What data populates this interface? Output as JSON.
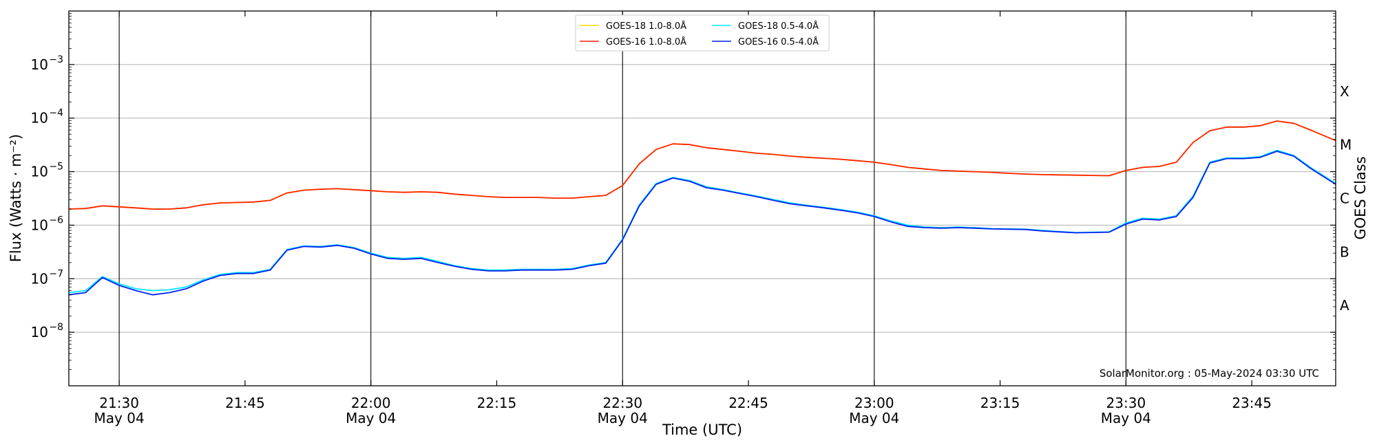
{
  "chart_data": {
    "type": "line",
    "title": "",
    "xlabel": "Time (UTC)",
    "ylabel": "Flux (Watts · m⁻²)",
    "right_ylabel": "GOES Class",
    "yscale": "log",
    "ylim": [
      1e-09,
      0.01
    ],
    "xlim": [
      "21:24",
      "23:55"
    ],
    "grid": "horizontal",
    "legend_position": "top-center",
    "x_ticks": [
      {
        "time": "21:30",
        "label": "21:30",
        "sublabel": "May 04",
        "vline": true
      },
      {
        "time": "21:45",
        "label": "21:45",
        "sublabel": "",
        "vline": false
      },
      {
        "time": "22:00",
        "label": "22:00",
        "sublabel": "May 04",
        "vline": true
      },
      {
        "time": "22:15",
        "label": "22:15",
        "sublabel": "",
        "vline": false
      },
      {
        "time": "22:30",
        "label": "22:30",
        "sublabel": "May 04",
        "vline": true
      },
      {
        "time": "22:45",
        "label": "22:45",
        "sublabel": "",
        "vline": false
      },
      {
        "time": "23:00",
        "label": "23:00",
        "sublabel": "May 04",
        "vline": true
      },
      {
        "time": "23:15",
        "label": "23:15",
        "sublabel": "",
        "vline": false
      },
      {
        "time": "23:30",
        "label": "23:30",
        "sublabel": "May 04",
        "vline": true
      },
      {
        "time": "23:45",
        "label": "23:45",
        "sublabel": "",
        "vline": false
      }
    ],
    "y_ticks": [
      {
        "value": 1e-08,
        "mantissa": "10",
        "exponent": "−8"
      },
      {
        "value": 1e-07,
        "mantissa": "10",
        "exponent": "−7"
      },
      {
        "value": 1e-06,
        "mantissa": "10",
        "exponent": "−6"
      },
      {
        "value": 1e-05,
        "mantissa": "10",
        "exponent": "−5"
      },
      {
        "value": 0.0001,
        "mantissa": "10",
        "exponent": "−4"
      },
      {
        "value": 0.001,
        "mantissa": "10",
        "exponent": "−3"
      }
    ],
    "goes_classes": [
      {
        "label": "X",
        "value": 0.000316
      },
      {
        "label": "M",
        "value": 3.16e-05
      },
      {
        "label": "C",
        "value": 3.16e-06
      },
      {
        "label": "B",
        "value": 3.16e-07
      },
      {
        "label": "A",
        "value": 3.16e-08
      }
    ],
    "series": [
      {
        "name": "GOES-18 1.0-8.0Å",
        "color": "#ffd700",
        "x": [
          "21:24",
          "21:26",
          "21:28",
          "21:30",
          "21:32",
          "21:34",
          "21:36",
          "21:38",
          "21:40",
          "21:42",
          "21:44",
          "21:46",
          "21:48",
          "21:50",
          "21:52",
          "21:54",
          "21:56",
          "21:58",
          "22:00",
          "22:02",
          "22:04",
          "22:06",
          "22:08",
          "22:10",
          "22:12",
          "22:14",
          "22:16",
          "22:18",
          "22:20",
          "22:22",
          "22:24",
          "22:26",
          "22:28",
          "22:30",
          "22:32",
          "22:34",
          "22:36",
          "22:38",
          "22:40",
          "22:42",
          "22:44",
          "22:46",
          "22:48",
          "22:50",
          "22:52",
          "22:54",
          "22:56",
          "22:58",
          "23:00",
          "23:02",
          "23:04",
          "23:06",
          "23:08",
          "23:10",
          "23:12",
          "23:14",
          "23:16",
          "23:18",
          "23:20",
          "23:22",
          "23:24",
          "23:26",
          "23:28",
          "23:30",
          "23:32",
          "23:34",
          "23:36",
          "23:38",
          "23:40",
          "23:42",
          "23:44",
          "23:46",
          "23:48",
          "23:50",
          "23:52",
          "23:55"
        ],
        "y": [
          2e-06,
          2.05e-06,
          2.3e-06,
          2.2e-06,
          2.1e-06,
          2e-06,
          2e-06,
          2.1e-06,
          2.4e-06,
          2.6e-06,
          2.65e-06,
          2.7e-06,
          2.9e-06,
          4e-06,
          4.5e-06,
          4.7e-06,
          4.8e-06,
          4.6e-06,
          4.4e-06,
          4.2e-06,
          4.1e-06,
          4.2e-06,
          4.1e-06,
          3.8e-06,
          3.6e-06,
          3.4e-06,
          3.3e-06,
          3.3e-06,
          3.3e-06,
          3.2e-06,
          3.2e-06,
          3.4e-06,
          3.6e-06,
          5.5e-06,
          1.4e-05,
          2.6e-05,
          3.3e-05,
          3.2e-05,
          2.8e-05,
          2.6e-05,
          2.4e-05,
          2.2e-05,
          2.1e-05,
          1.95e-05,
          1.85e-05,
          1.78e-05,
          1.7e-05,
          1.6e-05,
          1.5e-05,
          1.35e-05,
          1.2e-05,
          1.12e-05,
          1.05e-05,
          1.02e-05,
          1e-05,
          9.7e-06,
          9.3e-06,
          9e-06,
          8.8e-06,
          8.7e-06,
          8.6e-06,
          8.5e-06,
          8.4e-06,
          1.05e-05,
          1.2e-05,
          1.25e-05,
          1.5e-05,
          3.5e-05,
          5.8e-05,
          6.8e-05,
          6.8e-05,
          7.2e-05,
          8.8e-05,
          8e-05,
          6e-05,
          3.8e-05
        ]
      },
      {
        "name": "GOES-16 1.0-8.0Å",
        "color": "#ff2200",
        "x": [
          "21:24",
          "21:26",
          "21:28",
          "21:30",
          "21:32",
          "21:34",
          "21:36",
          "21:38",
          "21:40",
          "21:42",
          "21:44",
          "21:46",
          "21:48",
          "21:50",
          "21:52",
          "21:54",
          "21:56",
          "21:58",
          "22:00",
          "22:02",
          "22:04",
          "22:06",
          "22:08",
          "22:10",
          "22:12",
          "22:14",
          "22:16",
          "22:18",
          "22:20",
          "22:22",
          "22:24",
          "22:26",
          "22:28",
          "22:30",
          "22:32",
          "22:34",
          "22:36",
          "22:38",
          "22:40",
          "22:42",
          "22:44",
          "22:46",
          "22:48",
          "22:50",
          "22:52",
          "22:54",
          "22:56",
          "22:58",
          "23:00",
          "23:02",
          "23:04",
          "23:06",
          "23:08",
          "23:10",
          "23:12",
          "23:14",
          "23:16",
          "23:18",
          "23:20",
          "23:22",
          "23:24",
          "23:26",
          "23:28",
          "23:30",
          "23:32",
          "23:34",
          "23:36",
          "23:38",
          "23:40",
          "23:42",
          "23:44",
          "23:46",
          "23:48",
          "23:50",
          "23:52",
          "23:55"
        ],
        "y": [
          2e-06,
          2.05e-06,
          2.3e-06,
          2.2e-06,
          2.1e-06,
          2e-06,
          2e-06,
          2.1e-06,
          2.4e-06,
          2.6e-06,
          2.65e-06,
          2.7e-06,
          2.9e-06,
          4e-06,
          4.5e-06,
          4.7e-06,
          4.8e-06,
          4.6e-06,
          4.4e-06,
          4.2e-06,
          4.1e-06,
          4.2e-06,
          4.1e-06,
          3.8e-06,
          3.6e-06,
          3.4e-06,
          3.3e-06,
          3.3e-06,
          3.3e-06,
          3.2e-06,
          3.2e-06,
          3.4e-06,
          3.6e-06,
          5.5e-06,
          1.4e-05,
          2.6e-05,
          3.3e-05,
          3.2e-05,
          2.8e-05,
          2.6e-05,
          2.4e-05,
          2.2e-05,
          2.1e-05,
          1.95e-05,
          1.85e-05,
          1.78e-05,
          1.7e-05,
          1.6e-05,
          1.5e-05,
          1.35e-05,
          1.2e-05,
          1.12e-05,
          1.05e-05,
          1.02e-05,
          1e-05,
          9.7e-06,
          9.3e-06,
          9e-06,
          8.8e-06,
          8.7e-06,
          8.6e-06,
          8.5e-06,
          8.4e-06,
          1.05e-05,
          1.2e-05,
          1.25e-05,
          1.5e-05,
          3.5e-05,
          5.8e-05,
          6.8e-05,
          6.8e-05,
          7.2e-05,
          8.8e-05,
          8e-05,
          6e-05,
          3.8e-05
        ]
      },
      {
        "name": "GOES-18 0.5-4.0Å",
        "color": "#00e5ff",
        "x": [
          "21:24",
          "21:26",
          "21:28",
          "21:30",
          "21:32",
          "21:34",
          "21:36",
          "21:38",
          "21:40",
          "21:42",
          "21:44",
          "21:46",
          "21:48",
          "21:50",
          "21:52",
          "21:54",
          "21:56",
          "21:58",
          "22:00",
          "22:02",
          "22:04",
          "22:06",
          "22:08",
          "22:10",
          "22:12",
          "22:14",
          "22:16",
          "22:18",
          "22:20",
          "22:22",
          "22:24",
          "22:26",
          "22:28",
          "22:30",
          "22:32",
          "22:34",
          "22:36",
          "22:38",
          "22:40",
          "22:42",
          "22:44",
          "22:46",
          "22:48",
          "22:50",
          "22:52",
          "22:54",
          "22:56",
          "22:58",
          "23:00",
          "23:02",
          "23:04",
          "23:06",
          "23:08",
          "23:10",
          "23:12",
          "23:14",
          "23:16",
          "23:18",
          "23:20",
          "23:22",
          "23:24",
          "23:26",
          "23:28",
          "23:30",
          "23:32",
          "23:34",
          "23:36",
          "23:38",
          "23:40",
          "23:42",
          "23:44",
          "23:46",
          "23:48",
          "23:50",
          "23:52",
          "23:55"
        ],
        "y": [
          5.5e-08,
          6e-08,
          1.1e-07,
          8e-08,
          6.5e-08,
          6e-08,
          6.2e-08,
          7e-08,
          9.5e-08,
          1.2e-07,
          1.3e-07,
          1.3e-07,
          1.5e-07,
          3.5e-07,
          4.1e-07,
          4e-07,
          4.3e-07,
          3.8e-07,
          3e-07,
          2.5e-07,
          2.4e-07,
          2.5e-07,
          2.1e-07,
          1.75e-07,
          1.55e-07,
          1.45e-07,
          1.45e-07,
          1.5e-07,
          1.5e-07,
          1.5e-07,
          1.55e-07,
          1.8e-07,
          2e-07,
          5.5e-07,
          2.4e-06,
          6e-06,
          7.8e-06,
          6.8e-06,
          5.2e-06,
          4.6e-06,
          4e-06,
          3.5e-06,
          3e-06,
          2.6e-06,
          2.35e-06,
          2.15e-06,
          1.95e-06,
          1.75e-06,
          1.5e-06,
          1.2e-06,
          1e-06,
          9.2e-07,
          9e-07,
          9.2e-07,
          9e-07,
          8.6e-07,
          8.5e-07,
          8.4e-07,
          8e-07,
          7.6e-07,
          7.3e-07,
          7.4e-07,
          7.5e-07,
          1.1e-06,
          1.35e-06,
          1.3e-06,
          1.5e-06,
          3.5e-06,
          1.5e-05,
          1.8e-05,
          1.8e-05,
          1.9e-05,
          2.5e-05,
          2e-05,
          1.2e-05,
          6e-06
        ]
      },
      {
        "name": "GOES-16 0.5-4.0Å",
        "color": "#0022ee",
        "x": [
          "21:24",
          "21:26",
          "21:28",
          "21:30",
          "21:32",
          "21:34",
          "21:36",
          "21:38",
          "21:40",
          "21:42",
          "21:44",
          "21:46",
          "21:48",
          "21:50",
          "21:52",
          "21:54",
          "21:56",
          "21:58",
          "22:00",
          "22:02",
          "22:04",
          "22:06",
          "22:08",
          "22:10",
          "22:12",
          "22:14",
          "22:16",
          "22:18",
          "22:20",
          "22:22",
          "22:24",
          "22:26",
          "22:28",
          "22:30",
          "22:32",
          "22:34",
          "22:36",
          "22:38",
          "22:40",
          "22:42",
          "22:44",
          "22:46",
          "22:48",
          "22:50",
          "22:52",
          "22:54",
          "22:56",
          "22:58",
          "23:00",
          "23:02",
          "23:04",
          "23:06",
          "23:08",
          "23:10",
          "23:12",
          "23:14",
          "23:16",
          "23:18",
          "23:20",
          "23:22",
          "23:24",
          "23:26",
          "23:28",
          "23:30",
          "23:32",
          "23:34",
          "23:36",
          "23:38",
          "23:40",
          "23:42",
          "23:44",
          "23:46",
          "23:48",
          "23:50",
          "23:52",
          "23:55"
        ],
        "y": [
          5e-08,
          5.5e-08,
          1.05e-07,
          7.5e-08,
          6e-08,
          5e-08,
          5.5e-08,
          6.5e-08,
          9e-08,
          1.15e-07,
          1.25e-07,
          1.25e-07,
          1.45e-07,
          3.4e-07,
          4e-07,
          3.9e-07,
          4.2e-07,
          3.7e-07,
          2.9e-07,
          2.4e-07,
          2.3e-07,
          2.4e-07,
          2e-07,
          1.7e-07,
          1.5e-07,
          1.4e-07,
          1.4e-07,
          1.45e-07,
          1.45e-07,
          1.45e-07,
          1.5e-07,
          1.75e-07,
          1.95e-07,
          5.3e-07,
          2.3e-06,
          5.8e-06,
          7.6e-06,
          6.6e-06,
          5e-06,
          4.5e-06,
          3.9e-06,
          3.4e-06,
          2.9e-06,
          2.5e-06,
          2.3e-06,
          2.1e-06,
          1.9e-06,
          1.7e-06,
          1.45e-06,
          1.15e-06,
          9.5e-07,
          9e-07,
          8.8e-07,
          9e-07,
          8.8e-07,
          8.5e-07,
          8.4e-07,
          8.3e-07,
          7.8e-07,
          7.5e-07,
          7.2e-07,
          7.3e-07,
          7.4e-07,
          1.05e-06,
          1.3e-06,
          1.25e-06,
          1.45e-06,
          3.3e-06,
          1.45e-05,
          1.75e-05,
          1.75e-05,
          1.85e-05,
          2.4e-05,
          1.95e-05,
          1.15e-05,
          5.8e-06
        ]
      }
    ],
    "credit": "SolarMonitor.org : 05-May-2024 03:30 UTC"
  }
}
